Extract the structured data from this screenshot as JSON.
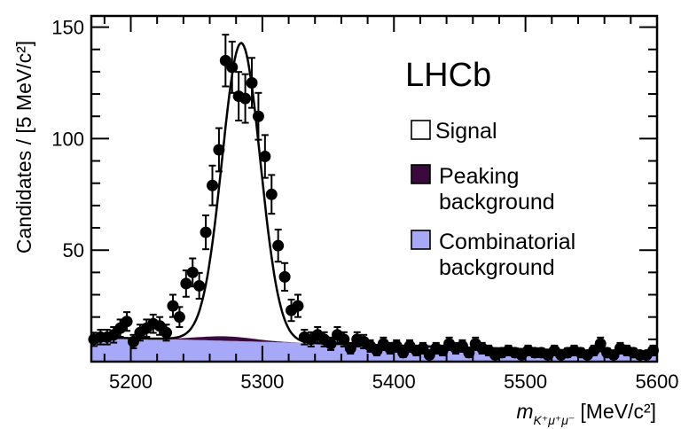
{
  "chart_data": {
    "type": "scatter",
    "experiment_label": "LHCb",
    "ylabel": "Candidates / [5 MeV/c²]",
    "xlabel_main": "m",
    "xlabel_sub": "K⁺μ⁺μ⁻",
    "xlabel_unit": "[MeV/c²]",
    "xlim": [
      5170,
      5600
    ],
    "ylim": [
      0,
      155
    ],
    "x_ticks": [
      5200,
      5300,
      5400,
      5500,
      5600
    ],
    "y_ticks": [
      50,
      100,
      150
    ],
    "legend": {
      "position": "right",
      "entries": [
        {
          "label": "Signal",
          "color": "#ffffff"
        },
        {
          "label": "Peaking",
          "label2": "background",
          "color": "#3a0a3e"
        },
        {
          "label": "Combinatorial",
          "label2": "background",
          "color": "#a8a8f8"
        }
      ]
    },
    "colors": {
      "combinatorial": "#a8a8f8",
      "peaking": "#3a0a3e",
      "fit_line": "#000000",
      "points": "#000000"
    },
    "data_points": [
      {
        "x": 5172,
        "y": 10,
        "err": 3
      },
      {
        "x": 5177,
        "y": 11,
        "err": 3.3
      },
      {
        "x": 5182,
        "y": 11,
        "err": 3.3
      },
      {
        "x": 5187,
        "y": 12,
        "err": 3.5
      },
      {
        "x": 5192,
        "y": 15,
        "err": 3.9
      },
      {
        "x": 5197,
        "y": 18,
        "err": 4.2
      },
      {
        "x": 5202,
        "y": 9,
        "err": 3
      },
      {
        "x": 5207,
        "y": 13,
        "err": 3.6
      },
      {
        "x": 5212,
        "y": 15,
        "err": 3.9
      },
      {
        "x": 5217,
        "y": 17,
        "err": 4.1
      },
      {
        "x": 5222,
        "y": 16,
        "err": 4
      },
      {
        "x": 5227,
        "y": 13,
        "err": 3.6
      },
      {
        "x": 5232,
        "y": 25,
        "err": 5
      },
      {
        "x": 5237,
        "y": 20,
        "err": 4.5
      },
      {
        "x": 5242,
        "y": 35,
        "err": 5.9
      },
      {
        "x": 5247,
        "y": 40,
        "err": 6.3
      },
      {
        "x": 5252,
        "y": 34,
        "err": 5.8
      },
      {
        "x": 5257,
        "y": 58,
        "err": 7.6
      },
      {
        "x": 5262,
        "y": 79,
        "err": 8.9
      },
      {
        "x": 5267,
        "y": 95,
        "err": 9.7
      },
      {
        "x": 5272,
        "y": 135,
        "err": 11.6
      },
      {
        "x": 5277,
        "y": 132,
        "err": 11.5
      },
      {
        "x": 5282,
        "y": 119,
        "err": 10.9
      },
      {
        "x": 5287,
        "y": 118,
        "err": 10.9
      },
      {
        "x": 5292,
        "y": 125,
        "err": 11.2
      },
      {
        "x": 5297,
        "y": 110,
        "err": 10.5
      },
      {
        "x": 5302,
        "y": 92,
        "err": 9.6
      },
      {
        "x": 5307,
        "y": 75,
        "err": 8.7
      },
      {
        "x": 5312,
        "y": 52,
        "err": 7.2
      },
      {
        "x": 5317,
        "y": 38,
        "err": 6.2
      },
      {
        "x": 5322,
        "y": 23,
        "err": 4.8
      },
      {
        "x": 5327,
        "y": 25,
        "err": 5
      },
      {
        "x": 5332,
        "y": 11,
        "err": 3.3
      },
      {
        "x": 5337,
        "y": 10,
        "err": 3.2
      },
      {
        "x": 5342,
        "y": 12,
        "err": 3.5
      },
      {
        "x": 5347,
        "y": 10,
        "err": 3.2
      },
      {
        "x": 5352,
        "y": 8,
        "err": 2.8
      },
      {
        "x": 5357,
        "y": 12,
        "err": 3.5
      },
      {
        "x": 5362,
        "y": 10,
        "err": 3.2
      },
      {
        "x": 5367,
        "y": 6,
        "err": 2.4
      },
      {
        "x": 5372,
        "y": 10,
        "err": 3.2
      },
      {
        "x": 5377,
        "y": 9,
        "err": 3
      },
      {
        "x": 5382,
        "y": 7,
        "err": 2.6
      },
      {
        "x": 5387,
        "y": 5,
        "err": 2.2
      },
      {
        "x": 5392,
        "y": 8,
        "err": 2.8
      },
      {
        "x": 5397,
        "y": 6,
        "err": 2.4
      },
      {
        "x": 5402,
        "y": 7,
        "err": 2.6
      },
      {
        "x": 5407,
        "y": 4,
        "err": 2
      },
      {
        "x": 5412,
        "y": 7,
        "err": 2.6
      },
      {
        "x": 5417,
        "y": 5,
        "err": 2.2
      },
      {
        "x": 5422,
        "y": 6,
        "err": 2.4
      },
      {
        "x": 5427,
        "y": 3,
        "err": 1.7
      },
      {
        "x": 5432,
        "y": 6,
        "err": 2.4
      },
      {
        "x": 5437,
        "y": 5,
        "err": 2.2
      },
      {
        "x": 5442,
        "y": 8,
        "err": 2.8
      },
      {
        "x": 5447,
        "y": 6,
        "err": 2.4
      },
      {
        "x": 5452,
        "y": 7,
        "err": 2.6
      },
      {
        "x": 5457,
        "y": 4,
        "err": 2
      },
      {
        "x": 5462,
        "y": 8,
        "err": 2.8
      },
      {
        "x": 5467,
        "y": 6,
        "err": 2.4
      },
      {
        "x": 5472,
        "y": 5,
        "err": 2.2
      },
      {
        "x": 5477,
        "y": 3,
        "err": 1.7
      },
      {
        "x": 5482,
        "y": 4,
        "err": 2
      },
      {
        "x": 5487,
        "y": 5,
        "err": 2.2
      },
      {
        "x": 5492,
        "y": 4,
        "err": 2
      },
      {
        "x": 5497,
        "y": 3,
        "err": 1.7
      },
      {
        "x": 5502,
        "y": 5,
        "err": 2.2
      },
      {
        "x": 5507,
        "y": 4,
        "err": 2
      },
      {
        "x": 5512,
        "y": 4,
        "err": 2
      },
      {
        "x": 5517,
        "y": 3,
        "err": 1.7
      },
      {
        "x": 5522,
        "y": 5,
        "err": 2.2
      },
      {
        "x": 5527,
        "y": 3,
        "err": 1.7
      },
      {
        "x": 5532,
        "y": 4,
        "err": 2
      },
      {
        "x": 5537,
        "y": 5,
        "err": 2.2
      },
      {
        "x": 5542,
        "y": 4,
        "err": 2
      },
      {
        "x": 5547,
        "y": 3,
        "err": 1.7
      },
      {
        "x": 5552,
        "y": 5,
        "err": 2.2
      },
      {
        "x": 5557,
        "y": 8,
        "err": 2.8
      },
      {
        "x": 5562,
        "y": 4,
        "err": 2
      },
      {
        "x": 5567,
        "y": 3,
        "err": 1.7
      },
      {
        "x": 5572,
        "y": 6,
        "err": 2.4
      },
      {
        "x": 5577,
        "y": 5,
        "err": 2.2
      },
      {
        "x": 5582,
        "y": 4,
        "err": 2
      },
      {
        "x": 5587,
        "y": 3,
        "err": 1.7
      },
      {
        "x": 5592,
        "y": 3,
        "err": 1.7
      },
      {
        "x": 5597,
        "y": 5,
        "err": 2.2
      }
    ],
    "fit_model": {
      "signal_mean": 5284,
      "signal_sigma": 14.5,
      "signal_amplitude": 132,
      "combinatorial": {
        "start": 11,
        "end": 4
      },
      "peaking": {
        "mean": 5272,
        "sigma": 22,
        "amplitude": 2
      }
    }
  }
}
